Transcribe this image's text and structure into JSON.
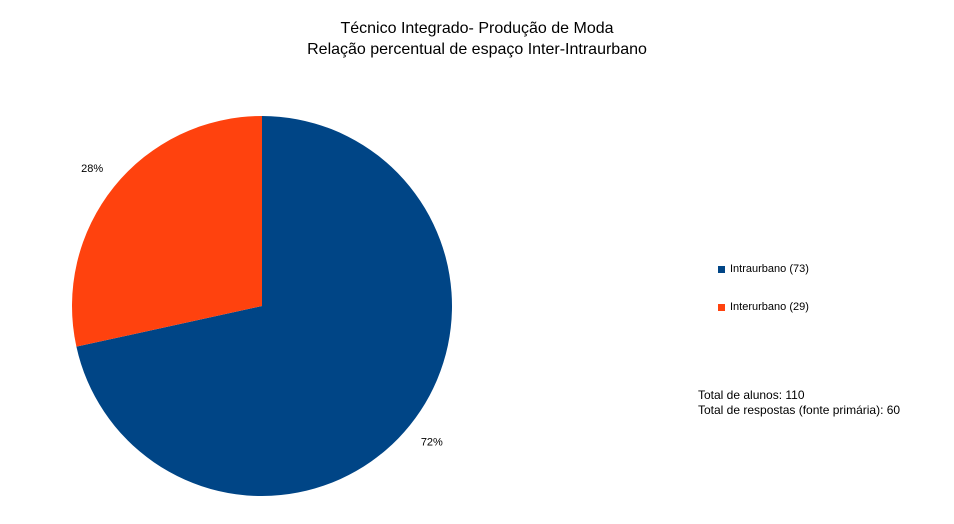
{
  "chart_data": {
    "type": "pie",
    "title": "Técnico Integrado- Produção de Moda",
    "subtitle": "Relação percentual de espaço Inter-Intraurbano",
    "slices": [
      {
        "label": "Intraurbano (73)",
        "value": 73,
        "percent_label": "72%",
        "color": "#004586"
      },
      {
        "label": "Interurbano (29)",
        "value": 29,
        "percent_label": "28%",
        "color": "#ff420e"
      }
    ],
    "legend_position": "right",
    "annotations": [
      "Total de alunos: 110",
      "Total de respostas (fonte primária): 60"
    ]
  }
}
